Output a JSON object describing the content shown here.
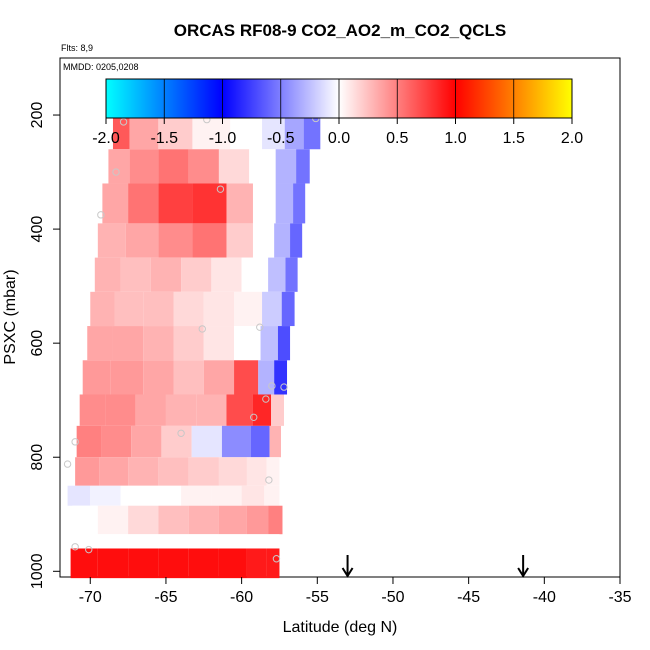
{
  "chart_data": {
    "type": "heatmap",
    "title": "ORCAS RF08-9 CO2_AO2_m_CO2_QCLS",
    "flights_label": "Flts: 8,9",
    "date_label": "MMDD: 0205,0208",
    "xlabel": "Latitude (deg N)",
    "ylabel": "PSXC (mbar)",
    "xlim": [
      -72,
      -35
    ],
    "ylim": [
      1010,
      100
    ],
    "x_ticks": [
      "-70",
      "-65",
      "-60",
      "-55",
      "-50",
      "-45",
      "-40",
      "-35"
    ],
    "x_tick_values": [
      -70,
      -65,
      -60,
      -55,
      -50,
      -45,
      -40,
      -35
    ],
    "y_ticks": [
      "200",
      "400",
      "600",
      "800",
      "1000"
    ],
    "y_tick_values": [
      200,
      400,
      600,
      800,
      1000
    ],
    "colorbar": {
      "min": -2.0,
      "max": 2.0,
      "ticks": [
        "-2.0",
        "-1.5",
        "-1.0",
        "-0.5",
        "0.0",
        "0.5",
        "1.0",
        "1.5",
        "2.0"
      ],
      "tick_values": [
        -2.0,
        -1.5,
        -1.0,
        -0.5,
        0.0,
        0.5,
        1.0,
        1.5,
        2.0
      ],
      "colors": [
        "#00ffff",
        "#0000ff",
        "#ffffff",
        "#ff0000",
        "#ffff00"
      ]
    },
    "arrows_at_latitude": [
      -53.0,
      -41.4
    ],
    "bands": [
      {
        "p_top": 165,
        "p_bot": 260,
        "lat_w": -68.5,
        "lat_e": -54.8,
        "cells": [
          {
            "lat": -68.3,
            "v": 0.65
          },
          {
            "lat": -66.5,
            "v": 0.35
          },
          {
            "lat": -64.5,
            "v": 0.2
          },
          {
            "lat": -62.0,
            "v": 0.05
          },
          {
            "lat": -59.5,
            "v": 0.0
          },
          {
            "lat": -57.8,
            "v": -0.1
          },
          {
            "lat": -56.5,
            "v": -0.35
          },
          {
            "lat": -55.3,
            "v": -0.55
          }
        ]
      },
      {
        "p_top": 260,
        "p_bot": 320,
        "lat_w": -68.8,
        "lat_e": -55.5,
        "cells": [
          {
            "lat": -68.3,
            "v": 0.35
          },
          {
            "lat": -66.5,
            "v": 0.45
          },
          {
            "lat": -64.5,
            "v": 0.55
          },
          {
            "lat": -62.5,
            "v": 0.45
          },
          {
            "lat": -60.5,
            "v": 0.15
          },
          {
            "lat": -58.5,
            "v": 0.0
          },
          {
            "lat": -57.0,
            "v": -0.3
          },
          {
            "lat": -55.8,
            "v": -0.55
          }
        ]
      },
      {
        "p_top": 320,
        "p_bot": 390,
        "lat_w": -69.2,
        "lat_e": -55.8,
        "cells": [
          {
            "lat": -68.5,
            "v": 0.35
          },
          {
            "lat": -66.5,
            "v": 0.55
          },
          {
            "lat": -64.5,
            "v": 0.75
          },
          {
            "lat": -62.0,
            "v": 0.8
          },
          {
            "lat": -60.0,
            "v": 0.3
          },
          {
            "lat": -58.5,
            "v": 0.0
          },
          {
            "lat": -57.0,
            "v": -0.3
          },
          {
            "lat": -56.2,
            "v": -0.55
          }
        ]
      },
      {
        "p_top": 390,
        "p_bot": 450,
        "lat_w": -69.5,
        "lat_e": -56.0,
        "cells": [
          {
            "lat": -68.8,
            "v": 0.3
          },
          {
            "lat": -66.5,
            "v": 0.35
          },
          {
            "lat": -64.5,
            "v": 0.45
          },
          {
            "lat": -62.0,
            "v": 0.55
          },
          {
            "lat": -60.0,
            "v": 0.2
          },
          {
            "lat": -58.5,
            "v": 0.0
          },
          {
            "lat": -57.2,
            "v": -0.3
          },
          {
            "lat": -56.4,
            "v": -0.6
          }
        ]
      },
      {
        "p_top": 450,
        "p_bot": 510,
        "lat_w": -69.7,
        "lat_e": -56.3,
        "cells": [
          {
            "lat": -69.0,
            "v": 0.3
          },
          {
            "lat": -67.0,
            "v": 0.25
          },
          {
            "lat": -65.0,
            "v": 0.3
          },
          {
            "lat": -63.0,
            "v": 0.2
          },
          {
            "lat": -61.0,
            "v": 0.1
          },
          {
            "lat": -59.0,
            "v": 0.0
          },
          {
            "lat": -57.5,
            "v": -0.25
          },
          {
            "lat": -56.7,
            "v": -0.55
          }
        ]
      },
      {
        "p_top": 510,
        "p_bot": 570,
        "lat_w": -70.0,
        "lat_e": -56.5,
        "cells": [
          {
            "lat": -69.3,
            "v": 0.3
          },
          {
            "lat": -67.5,
            "v": 0.25
          },
          {
            "lat": -65.5,
            "v": 0.25
          },
          {
            "lat": -63.5,
            "v": 0.15
          },
          {
            "lat": -61.5,
            "v": 0.1
          },
          {
            "lat": -59.5,
            "v": 0.05
          },
          {
            "lat": -57.8,
            "v": -0.2
          },
          {
            "lat": -56.9,
            "v": -0.6
          }
        ]
      },
      {
        "p_top": 570,
        "p_bot": 630,
        "lat_w": -70.2,
        "lat_e": -56.8,
        "cells": [
          {
            "lat": -69.5,
            "v": 0.35
          },
          {
            "lat": -67.5,
            "v": 0.35
          },
          {
            "lat": -65.5,
            "v": 0.3
          },
          {
            "lat": -63.5,
            "v": 0.2
          },
          {
            "lat": -61.5,
            "v": 0.1
          },
          {
            "lat": -59.5,
            "v": 0.0
          },
          {
            "lat": -58.0,
            "v": -0.25
          },
          {
            "lat": -57.2,
            "v": -0.7
          }
        ]
      },
      {
        "p_top": 630,
        "p_bot": 690,
        "lat_w": -70.5,
        "lat_e": -57.0,
        "cells": [
          {
            "lat": -69.8,
            "v": 0.4
          },
          {
            "lat": -67.5,
            "v": 0.4
          },
          {
            "lat": -65.5,
            "v": 0.35
          },
          {
            "lat": -63.5,
            "v": 0.25
          },
          {
            "lat": -61.5,
            "v": 0.35
          },
          {
            "lat": -59.5,
            "v": 0.7
          },
          {
            "lat": -58.3,
            "v": -0.3
          },
          {
            "lat": -57.4,
            "v": -0.8
          }
        ]
      },
      {
        "p_top": 690,
        "p_bot": 745,
        "lat_w": -70.7,
        "lat_e": -57.2,
        "cells": [
          {
            "lat": -70.0,
            "v": 0.45
          },
          {
            "lat": -68.0,
            "v": 0.45
          },
          {
            "lat": -66.0,
            "v": 0.35
          },
          {
            "lat": -64.0,
            "v": 0.3
          },
          {
            "lat": -62.0,
            "v": 0.3
          },
          {
            "lat": -60.0,
            "v": 0.7
          },
          {
            "lat": -58.5,
            "v": 0.85
          },
          {
            "lat": -57.6,
            "v": 0.2
          }
        ]
      },
      {
        "p_top": 745,
        "p_bot": 800,
        "lat_w": -70.9,
        "lat_e": -57.4,
        "cells": [
          {
            "lat": -70.2,
            "v": 0.5
          },
          {
            "lat": -68.3,
            "v": 0.45
          },
          {
            "lat": -66.3,
            "v": 0.35
          },
          {
            "lat": -64.3,
            "v": 0.2
          },
          {
            "lat": -62.3,
            "v": -0.1
          },
          {
            "lat": -60.3,
            "v": -0.45
          },
          {
            "lat": -58.5,
            "v": -0.6
          },
          {
            "lat": -57.8,
            "v": 0.3
          }
        ]
      },
      {
        "p_top": 800,
        "p_bot": 850,
        "lat_w": -71.0,
        "lat_e": -57.5,
        "cells": [
          {
            "lat": -70.3,
            "v": 0.4
          },
          {
            "lat": -68.5,
            "v": 0.35
          },
          {
            "lat": -66.5,
            "v": 0.3
          },
          {
            "lat": -64.5,
            "v": 0.25
          },
          {
            "lat": -62.5,
            "v": 0.2
          },
          {
            "lat": -60.5,
            "v": 0.15
          },
          {
            "lat": -58.8,
            "v": 0.1
          },
          {
            "lat": -57.9,
            "v": 0.05
          }
        ]
      },
      {
        "p_top": 850,
        "p_bot": 885,
        "lat_w": -71.5,
        "lat_e": -57.5,
        "cells": [
          {
            "lat": -71.0,
            "v": -0.1
          },
          {
            "lat": -69.0,
            "v": -0.05
          },
          {
            "lat": -67.0,
            "v": 0.0
          },
          {
            "lat": -65.0,
            "v": 0.0
          },
          {
            "lat": -63.0,
            "v": 0.05
          },
          {
            "lat": -61.0,
            "v": 0.05
          },
          {
            "lat": -59.0,
            "v": 0.1
          },
          {
            "lat": -58.0,
            "v": 0.05
          }
        ]
      },
      {
        "p_top": 885,
        "p_bot": 935,
        "lat_w": -71.2,
        "lat_e": -57.3,
        "cells": [
          {
            "lat": -70.5,
            "v": 0.0
          },
          {
            "lat": -68.5,
            "v": 0.05
          },
          {
            "lat": -66.5,
            "v": 0.15
          },
          {
            "lat": -64.5,
            "v": 0.25
          },
          {
            "lat": -62.5,
            "v": 0.3
          },
          {
            "lat": -60.5,
            "v": 0.35
          },
          {
            "lat": -58.8,
            "v": 0.4
          },
          {
            "lat": -57.7,
            "v": 0.5
          }
        ]
      },
      {
        "p_top": 935,
        "p_bot": 960,
        "lat_w": -71.0,
        "lat_e": -57.5,
        "cells": [
          {
            "lat": -70.5,
            "v": 0.0
          },
          {
            "lat": -68.5,
            "v": 0.0
          },
          {
            "lat": -66.5,
            "v": 0.0
          },
          {
            "lat": -64.5,
            "v": 0.0
          },
          {
            "lat": -62.5,
            "v": 0.0
          },
          {
            "lat": -60.5,
            "v": 0.0
          },
          {
            "lat": -58.8,
            "v": 0.0
          },
          {
            "lat": -57.9,
            "v": 0.0
          }
        ]
      },
      {
        "p_top": 960,
        "p_bot": 1012,
        "lat_w": -71.3,
        "lat_e": -57.5,
        "cells": [
          {
            "lat": -70.5,
            "v": 0.95
          },
          {
            "lat": -68.5,
            "v": 0.95
          },
          {
            "lat": -66.5,
            "v": 0.95
          },
          {
            "lat": -64.5,
            "v": 0.95
          },
          {
            "lat": -62.5,
            "v": 0.95
          },
          {
            "lat": -60.5,
            "v": 0.95
          },
          {
            "lat": -58.8,
            "v": 0.9
          },
          {
            "lat": -57.9,
            "v": 0.9
          }
        ]
      }
    ],
    "points": [
      {
        "lat": -67.8,
        "p": 212
      },
      {
        "lat": -62.3,
        "p": 208
      },
      {
        "lat": -58.3,
        "p": 186
      },
      {
        "lat": -55.1,
        "p": 206
      },
      {
        "lat": -68.3,
        "p": 300
      },
      {
        "lat": -61.4,
        "p": 330
      },
      {
        "lat": -69.3,
        "p": 375
      },
      {
        "lat": -62.6,
        "p": 575
      },
      {
        "lat": -58.8,
        "p": 572
      },
      {
        "lat": -58.0,
        "p": 675
      },
      {
        "lat": -58.4,
        "p": 698
      },
      {
        "lat": -57.2,
        "p": 677
      },
      {
        "lat": -64.0,
        "p": 758
      },
      {
        "lat": -59.2,
        "p": 730
      },
      {
        "lat": -71.0,
        "p": 773
      },
      {
        "lat": -71.5,
        "p": 812
      },
      {
        "lat": -58.2,
        "p": 840
      },
      {
        "lat": -71.0,
        "p": 957
      },
      {
        "lat": -70.1,
        "p": 962
      },
      {
        "lat": -57.7,
        "p": 978
      }
    ]
  }
}
